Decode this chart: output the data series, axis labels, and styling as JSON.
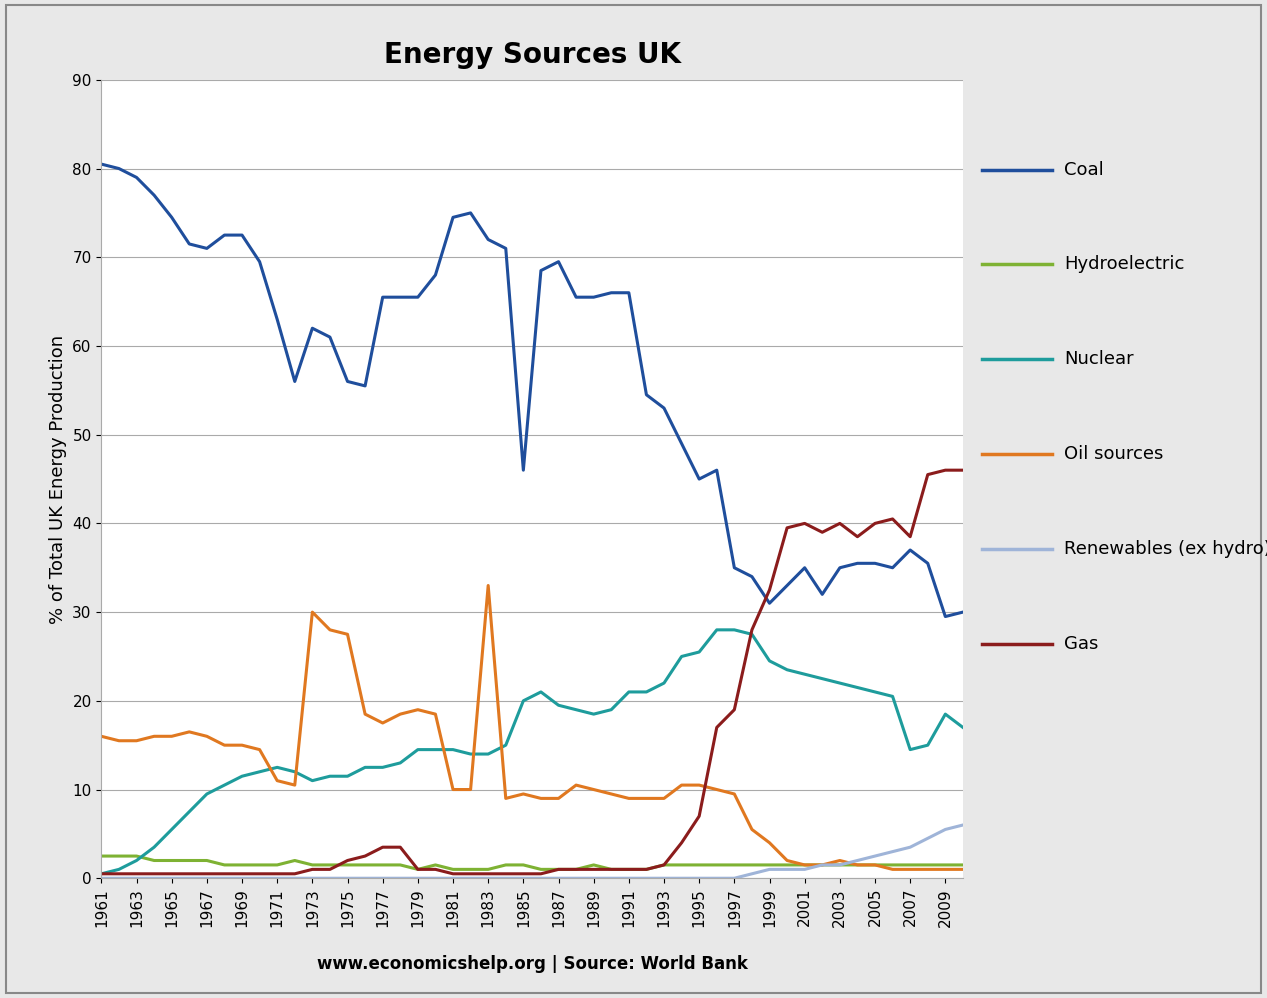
{
  "title": "Energy Sources UK",
  "xlabel": "www.economicshelp.org | Source: World Bank",
  "ylabel": "% of Total UK Energy Production",
  "years": [
    1961,
    1962,
    1963,
    1964,
    1965,
    1966,
    1967,
    1968,
    1969,
    1970,
    1971,
    1972,
    1973,
    1974,
    1975,
    1976,
    1977,
    1978,
    1979,
    1980,
    1981,
    1982,
    1983,
    1984,
    1985,
    1986,
    1987,
    1988,
    1989,
    1990,
    1991,
    1992,
    1993,
    1994,
    1995,
    1996,
    1997,
    1998,
    1999,
    2000,
    2001,
    2002,
    2003,
    2004,
    2005,
    2006,
    2007,
    2008,
    2009,
    2010
  ],
  "coal": [
    80.5,
    80.0,
    79.0,
    77.0,
    74.5,
    71.5,
    71.0,
    72.5,
    72.5,
    69.5,
    63.0,
    56.0,
    62.0,
    61.0,
    56.0,
    55.5,
    65.5,
    65.5,
    65.5,
    68.0,
    74.5,
    75.0,
    72.0,
    71.0,
    46.0,
    68.5,
    69.5,
    65.5,
    65.5,
    66.0,
    66.0,
    54.5,
    53.0,
    49.0,
    45.0,
    46.0,
    35.0,
    34.0,
    31.0,
    33.0,
    35.0,
    32.0,
    35.0,
    35.5,
    35.5,
    35.0,
    37.0,
    35.5,
    29.5,
    30.0
  ],
  "hydroelectric": [
    2.5,
    2.5,
    2.5,
    2.0,
    2.0,
    2.0,
    2.0,
    1.5,
    1.5,
    1.5,
    1.5,
    2.0,
    1.5,
    1.5,
    1.5,
    1.5,
    1.5,
    1.5,
    1.0,
    1.5,
    1.0,
    1.0,
    1.0,
    1.5,
    1.5,
    1.0,
    1.0,
    1.0,
    1.5,
    1.0,
    1.0,
    1.0,
    1.5,
    1.5,
    1.5,
    1.5,
    1.5,
    1.5,
    1.5,
    1.5,
    1.5,
    1.5,
    1.5,
    1.5,
    1.5,
    1.5,
    1.5,
    1.5,
    1.5,
    1.5
  ],
  "nuclear": [
    0.5,
    1.0,
    2.0,
    3.5,
    5.5,
    7.5,
    9.5,
    10.5,
    11.5,
    12.0,
    12.5,
    12.0,
    11.0,
    11.5,
    11.5,
    12.5,
    12.5,
    13.0,
    14.5,
    14.5,
    14.5,
    14.0,
    14.0,
    15.0,
    20.0,
    21.0,
    19.5,
    19.0,
    18.5,
    19.0,
    21.0,
    21.0,
    22.0,
    25.0,
    25.5,
    28.0,
    28.0,
    27.5,
    24.5,
    23.5,
    23.0,
    22.5,
    22.0,
    21.5,
    21.0,
    20.5,
    14.5,
    15.0,
    18.5,
    17.0
  ],
  "oil_sources": [
    16.0,
    15.5,
    15.5,
    16.0,
    16.0,
    16.5,
    16.0,
    15.0,
    15.0,
    14.5,
    11.0,
    10.5,
    30.0,
    28.0,
    27.5,
    18.5,
    17.5,
    18.5,
    19.0,
    18.5,
    10.0,
    10.0,
    33.0,
    9.0,
    9.5,
    9.0,
    9.0,
    10.5,
    10.0,
    9.5,
    9.0,
    9.0,
    9.0,
    10.5,
    10.5,
    10.0,
    9.5,
    5.5,
    4.0,
    2.0,
    1.5,
    1.5,
    2.0,
    1.5,
    1.5,
    1.0,
    1.0,
    1.0,
    1.0,
    1.0
  ],
  "renewables": [
    0.0,
    0.0,
    0.0,
    0.0,
    0.0,
    0.0,
    0.0,
    0.0,
    0.0,
    0.0,
    0.0,
    0.0,
    0.0,
    0.0,
    0.0,
    0.0,
    0.0,
    0.0,
    0.0,
    0.0,
    0.0,
    0.0,
    0.0,
    0.0,
    0.0,
    0.0,
    0.0,
    0.0,
    0.0,
    0.0,
    0.0,
    0.0,
    0.0,
    0.0,
    0.0,
    0.0,
    0.0,
    0.5,
    1.0,
    1.0,
    1.0,
    1.5,
    1.5,
    2.0,
    2.5,
    3.0,
    3.5,
    4.5,
    5.5,
    6.0
  ],
  "gas": [
    0.5,
    0.5,
    0.5,
    0.5,
    0.5,
    0.5,
    0.5,
    0.5,
    0.5,
    0.5,
    0.5,
    0.5,
    1.0,
    1.0,
    2.0,
    2.5,
    3.5,
    3.5,
    1.0,
    1.0,
    0.5,
    0.5,
    0.5,
    0.5,
    0.5,
    0.5,
    1.0,
    1.0,
    1.0,
    1.0,
    1.0,
    1.0,
    1.5,
    4.0,
    7.0,
    17.0,
    19.0,
    28.0,
    32.5,
    39.5,
    40.0,
    39.0,
    40.0,
    38.5,
    40.0,
    40.5,
    38.5,
    45.5,
    46.0,
    46.0
  ],
  "colors": {
    "coal": "#1f4e9c",
    "hydroelectric": "#7eb233",
    "nuclear": "#1e9c9c",
    "oil_sources": "#e07820",
    "renewables": "#9fb4d8",
    "gas": "#8b1c1c"
  },
  "ylim": [
    0,
    90
  ],
  "yticks": [
    0,
    10,
    20,
    30,
    40,
    50,
    60,
    70,
    80,
    90
  ],
  "fig_background": "#e8e8e8",
  "plot_background": "#ffffff",
  "border_color": "#aaaaaa",
  "title_fontsize": 20,
  "label_fontsize": 13,
  "tick_fontsize": 11,
  "legend_fontsize": 13
}
